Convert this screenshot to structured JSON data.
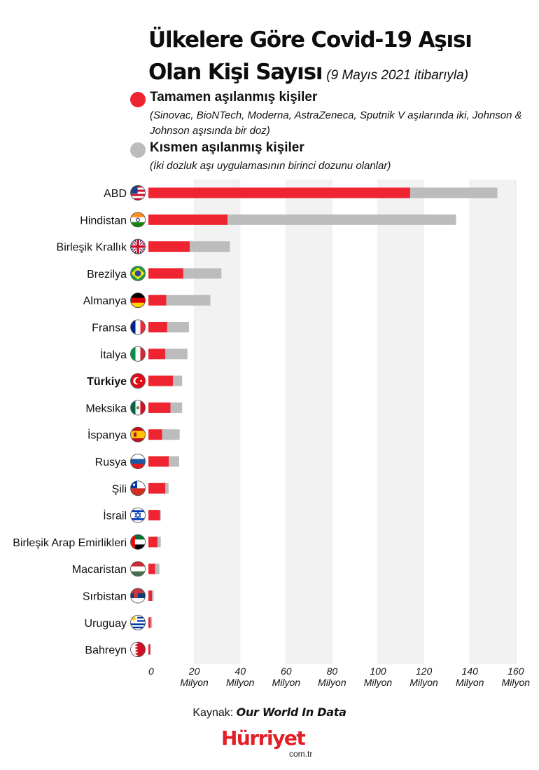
{
  "title": {
    "line1": "Ülkelere Göre Covid-19 Aşısı",
    "line2": "Olan Kişi Sayısı",
    "subtitle": "(9 Mayıs 2021 itibarıyla)"
  },
  "legend": [
    {
      "label": "Tamamen aşılanmış kişiler",
      "note": "(Sinovac, BioNTech, Moderna, AstraZeneca, Sputnik V aşılarında iki, Johnson & Johnson aşısında bir doz)",
      "color": "#ee2430"
    },
    {
      "label": "Kısmen aşılanmış kişiler",
      "note": "(İki dozluk aşı uygulamasının birinci dozunu olanlar)",
      "color": "#bcbcbc"
    }
  ],
  "chart_data": {
    "type": "bar",
    "orientation": "horizontal",
    "stacked": true,
    "categories": [
      "ABD",
      "Hindistan",
      "Birleşik Krallık",
      "Brezilya",
      "Almanya",
      "Fransa",
      "İtalya",
      "Türkiye",
      "Meksika",
      "İspanya",
      "Rusya",
      "Şili",
      "İsrail",
      "Birleşik Arap Emirlikleri",
      "Macaristan",
      "Sırbistan",
      "Uruguay",
      "Bahreyn"
    ],
    "highlight": "Türkiye",
    "flags": [
      "us",
      "in",
      "gb",
      "br",
      "de",
      "fr",
      "it",
      "tr",
      "mx",
      "es",
      "ru",
      "cl",
      "il",
      "ae",
      "hu",
      "rs",
      "uy",
      "bh"
    ],
    "series": [
      {
        "name": "Tamamen aşılanmış kişiler",
        "color": "#ee2430",
        "values": [
          114,
          34.5,
          18,
          15.2,
          7.8,
          8.2,
          7.4,
          10.7,
          9.6,
          6.0,
          8.9,
          7.4,
          5.1,
          4.0,
          2.9,
          1.6,
          1.0,
          0.8
        ]
      },
      {
        "name": "Kısmen aşılanmış kişiler",
        "color": "#bcbcbc",
        "values": [
          38,
          99.5,
          17.5,
          16.6,
          19.2,
          9.5,
          9.6,
          4.0,
          5.1,
          7.6,
          4.5,
          1.4,
          0.3,
          1.4,
          1.9,
          0.7,
          0.6,
          0.3
        ]
      }
    ],
    "x_ticks": [
      0,
      20,
      40,
      60,
      80,
      100,
      120,
      140,
      160
    ],
    "x_tick_unit": "Milyon",
    "xlim": [
      0,
      160
    ],
    "grid_bands": "alternating"
  },
  "source": {
    "prefix": "Kaynak: ",
    "name": "Our World In Data"
  },
  "brand": {
    "name": "Hürriyet",
    "sub": "com.tr"
  }
}
